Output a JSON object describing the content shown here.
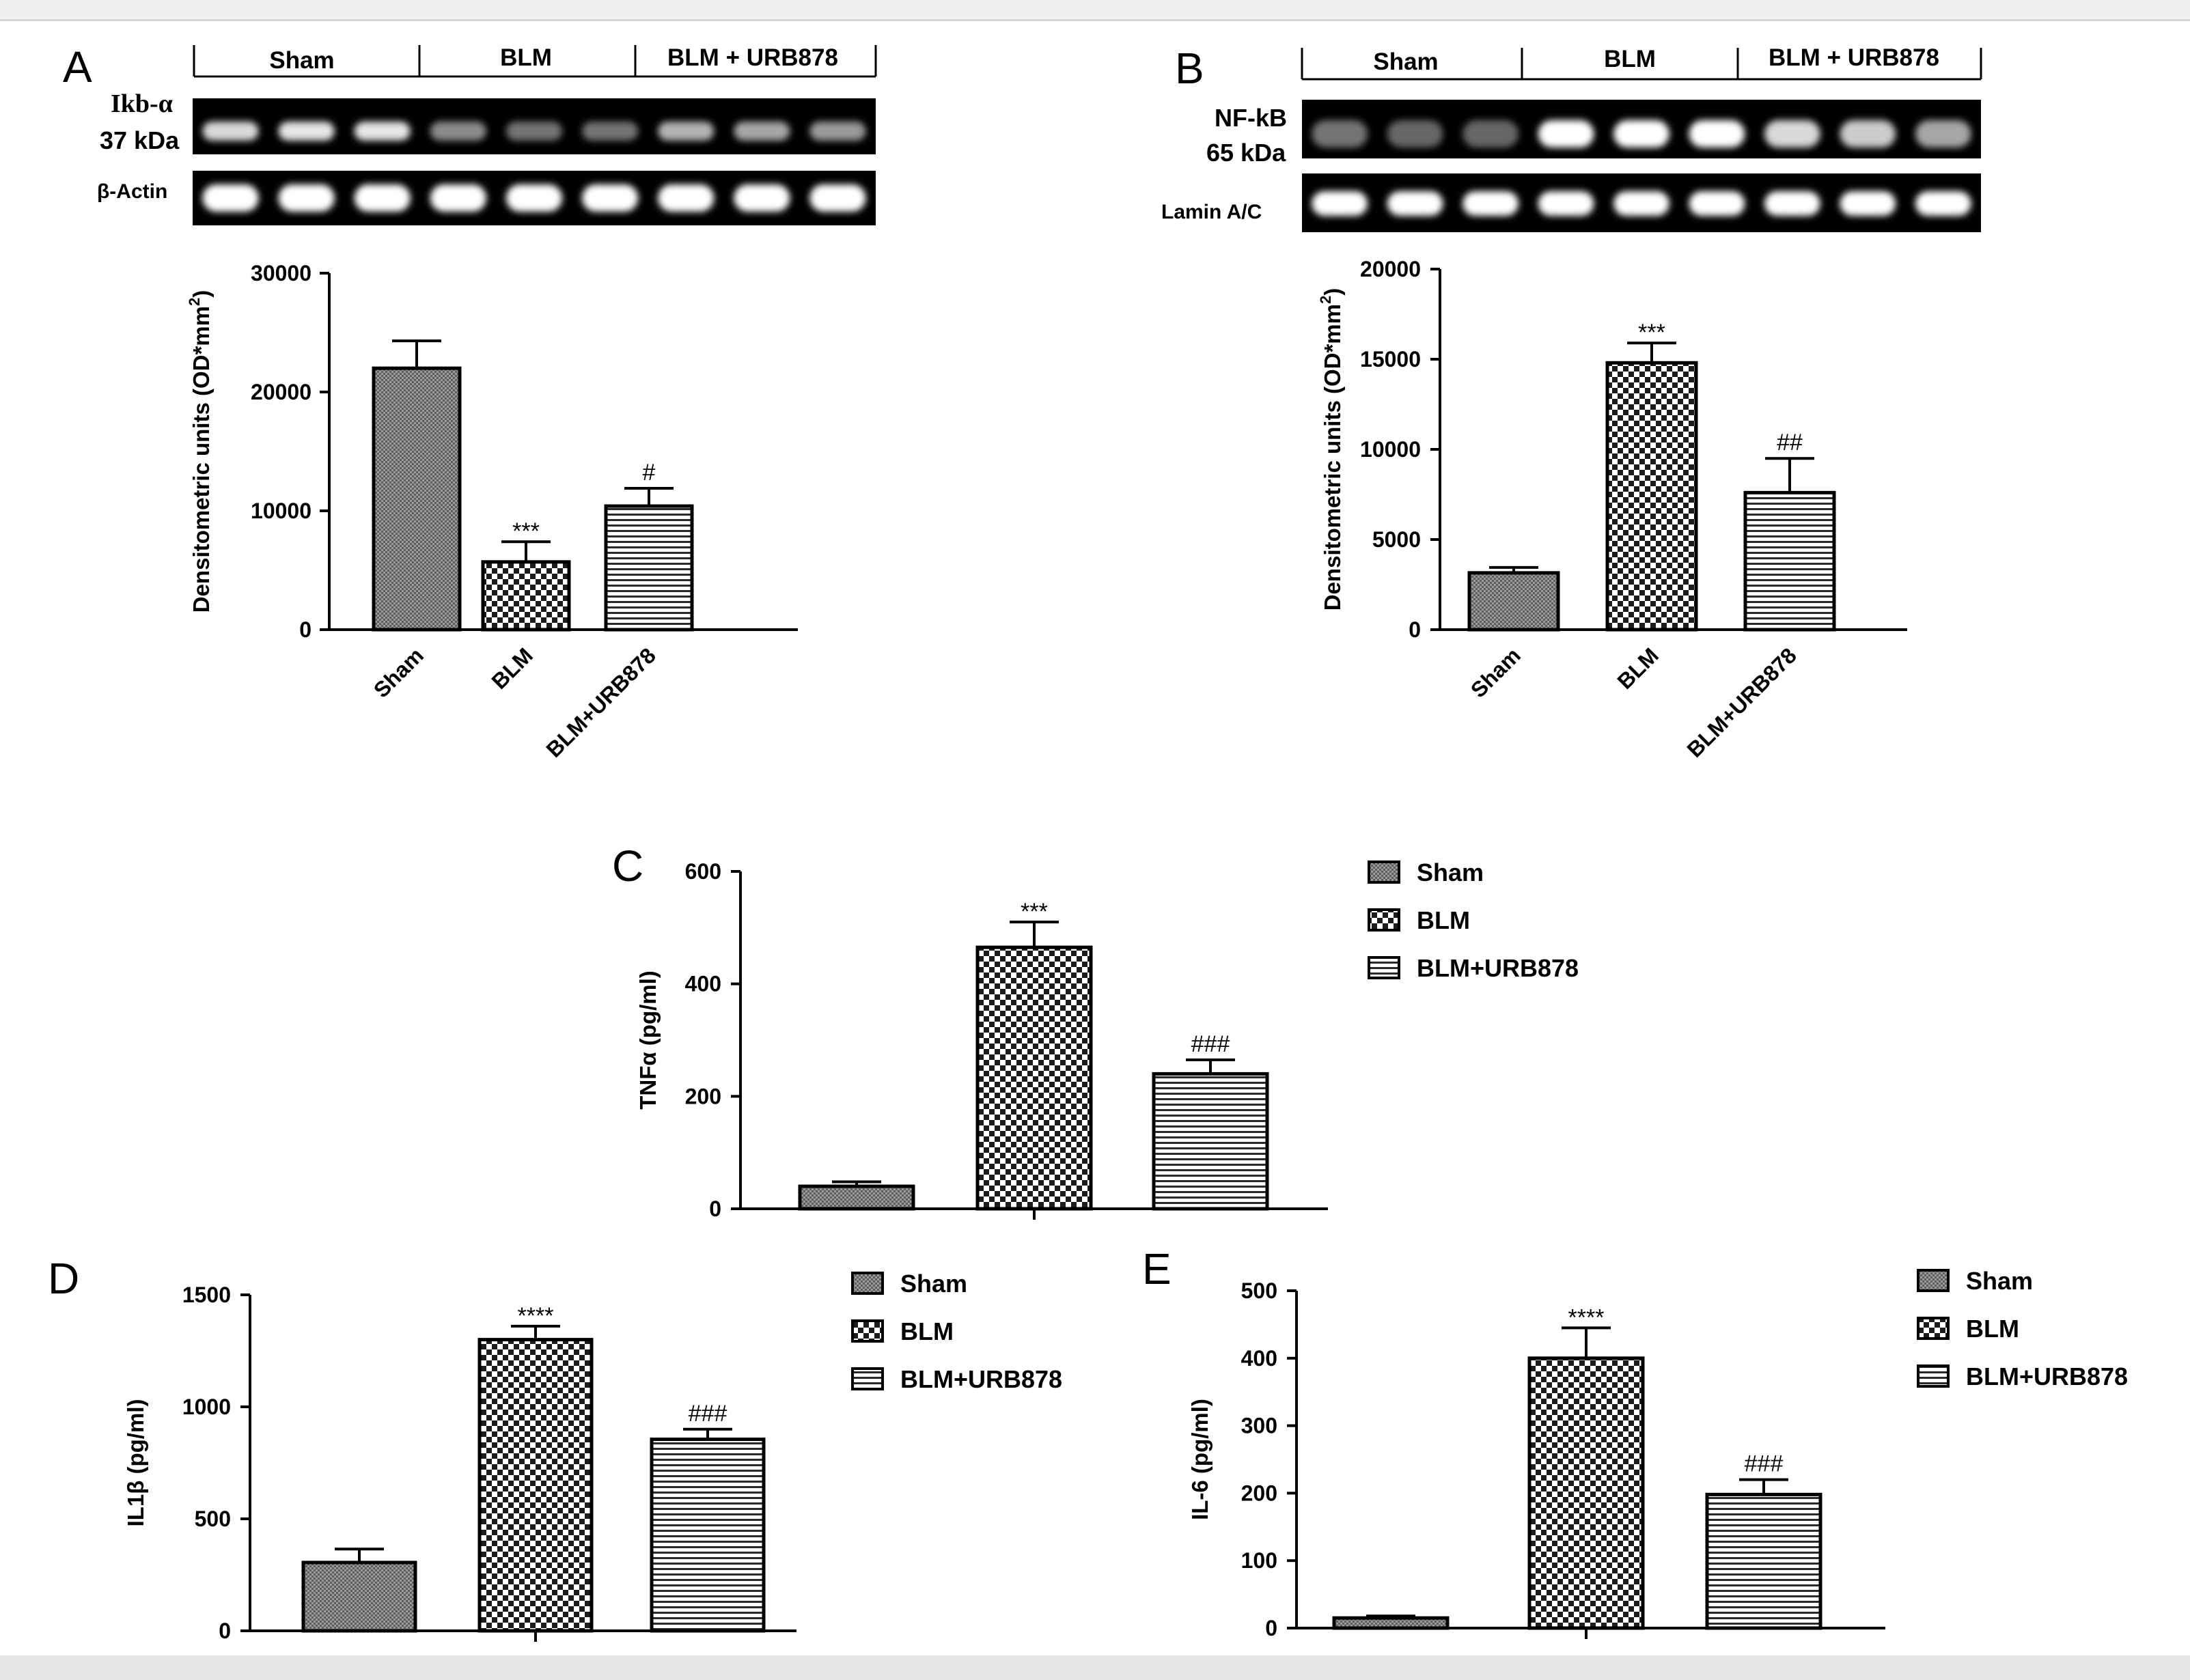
{
  "colors": {
    "bar_fill_light": "#ffffff",
    "bar_dark": "#222222",
    "blot_band": "#ffffff",
    "blot_bg": "#000000"
  },
  "blots": {
    "A": {
      "groups": [
        "Sham",
        "BLM",
        "BLM + URB878"
      ],
      "protein_label": "Ikb-α",
      "protein_weight": "37 kDa",
      "loading_label": "β-Actin",
      "band_intensity": [
        0.85,
        0.9,
        0.9,
        0.55,
        0.45,
        0.45,
        0.7,
        0.65,
        0.6
      ],
      "loading_intensity": [
        1,
        1,
        1,
        1,
        1,
        1,
        1,
        1,
        1
      ]
    },
    "B": {
      "groups": [
        "Sham",
        "BLM",
        "BLM + URB878"
      ],
      "protein_label": "NF-kB",
      "protein_weight": "65 kDa",
      "loading_label": "Lamin A/C",
      "band_intensity": [
        0.45,
        0.4,
        0.4,
        1,
        1,
        1,
        0.85,
        0.8,
        0.65
      ],
      "loading_intensity": [
        1,
        1,
        1,
        1,
        1,
        1,
        1,
        1,
        1
      ]
    }
  },
  "chart_data": [
    {
      "panel": "A",
      "type": "bar",
      "categories": [
        "Sham",
        "BLM",
        "BLM+URB878"
      ],
      "values": [
        22000,
        5700,
        10400
      ],
      "errors": [
        2300,
        1700,
        1500
      ],
      "annotations": [
        "",
        "***",
        "#"
      ],
      "ylabel": "Densitometric units (OD*mm²)",
      "ylabel_main": "Densitometric units (OD*mm",
      "ylabel_sup": "2",
      "ylabel_close": ")",
      "ylim": [
        0,
        30000
      ],
      "yticks": [
        0,
        10000,
        20000,
        30000
      ],
      "ytick_labels": [
        "0",
        "10000",
        "20000",
        "30000"
      ],
      "show_category_labels": true,
      "patterns": [
        "dense",
        "check",
        "hstripe"
      ]
    },
    {
      "panel": "B",
      "type": "bar",
      "categories": [
        "Sham",
        "BLM",
        "BLM+URB878"
      ],
      "values": [
        3150,
        14800,
        7600
      ],
      "errors": [
        300,
        1100,
        1900
      ],
      "annotations": [
        "",
        "***",
        "##"
      ],
      "ylabel": "Densitometric units (OD*mm²)",
      "ylabel_main": "Densitometric units (OD*mm",
      "ylabel_sup": "2",
      "ylabel_close": ")",
      "ylim": [
        0,
        20000
      ],
      "yticks": [
        0,
        5000,
        10000,
        15000,
        20000
      ],
      "ytick_labels": [
        "0",
        "5000",
        "10000",
        "15000",
        "20000"
      ],
      "show_category_labels": true,
      "patterns": [
        "dense",
        "check",
        "hstripe"
      ]
    },
    {
      "panel": "C",
      "type": "bar",
      "categories": [
        "Sham",
        "BLM",
        "BLM+URB878"
      ],
      "values": [
        40,
        465,
        240
      ],
      "errors": [
        8,
        45,
        25
      ],
      "annotations": [
        "",
        "***",
        "###"
      ],
      "ylabel": "TNFα (pg/ml)",
      "ylim": [
        0,
        600
      ],
      "yticks": [
        0,
        200,
        400,
        600
      ],
      "ytick_labels": [
        "0",
        "200",
        "400",
        "600"
      ],
      "show_category_labels": false,
      "legend": [
        "Sham",
        "BLM",
        "BLM+URB878"
      ],
      "legend_position": "right",
      "patterns": [
        "dense",
        "check",
        "hstripe"
      ]
    },
    {
      "panel": "D",
      "type": "bar",
      "categories": [
        "Sham",
        "BLM",
        "BLM+URB878"
      ],
      "values": [
        305,
        1300,
        855
      ],
      "errors": [
        60,
        60,
        45
      ],
      "annotations": [
        "",
        "****",
        "###"
      ],
      "ylabel": "IL1β (pg/ml)",
      "ylim": [
        0,
        1500
      ],
      "yticks": [
        0,
        500,
        1000,
        1500
      ],
      "ytick_labels": [
        "0",
        "500",
        "1000",
        "1500"
      ],
      "show_category_labels": false,
      "legend": [
        "Sham",
        "BLM",
        "BLM+URB878"
      ],
      "legend_position": "right",
      "patterns": [
        "dense",
        "check",
        "hstripe"
      ]
    },
    {
      "panel": "E",
      "type": "bar",
      "categories": [
        "Sham",
        "BLM",
        "BLM+URB878"
      ],
      "values": [
        15,
        400,
        198
      ],
      "errors": [
        3,
        45,
        22
      ],
      "annotations": [
        "",
        "****",
        "###"
      ],
      "ylabel": "IL-6 (pg/ml)",
      "ylim": [
        0,
        500
      ],
      "yticks": [
        0,
        100,
        200,
        300,
        400,
        500
      ],
      "ytick_labels": [
        "0",
        "100",
        "200",
        "300",
        "400",
        "500"
      ],
      "show_category_labels": false,
      "legend": [
        "Sham",
        "BLM",
        "BLM+URB878"
      ],
      "legend_position": "right",
      "patterns": [
        "dense",
        "check",
        "hstripe"
      ]
    }
  ]
}
